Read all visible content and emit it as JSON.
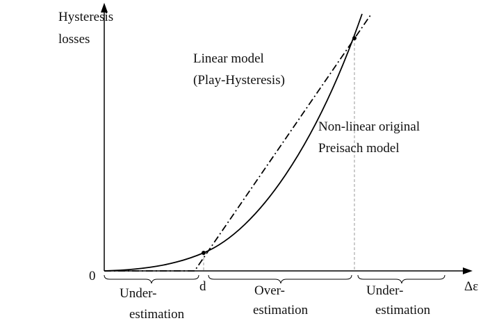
{
  "axes": {
    "y_label": [
      "Hysteresis",
      "losses"
    ],
    "origin": "0",
    "x_label": "Δε",
    "threshold": "d"
  },
  "curves": {
    "linear": [
      "Linear model",
      "(Play-Hysteresis)"
    ],
    "nonlinear": [
      "Non-linear original",
      "Preisach model"
    ]
  },
  "regions": [
    {
      "lines": [
        "Under-",
        "estimation"
      ]
    },
    {
      "lines": [
        "Over-",
        "estimation"
      ]
    },
    {
      "lines": [
        "Under-",
        "estimation"
      ]
    }
  ]
}
